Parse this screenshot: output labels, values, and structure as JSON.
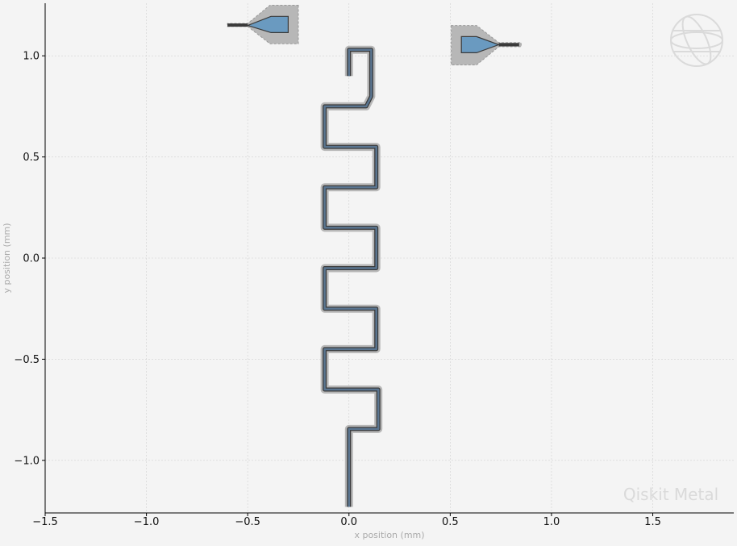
{
  "plot": {
    "xlabel": "x position (mm)",
    "ylabel": "y position (mm)",
    "watermark": "Qiskit Metal",
    "xlim": [
      -1.5,
      1.9
    ],
    "ylim": [
      -1.26,
      1.26
    ],
    "xticks": [
      {
        "value": -1.5,
        "label": "−1.5"
      },
      {
        "value": -1.0,
        "label": "−1.0"
      },
      {
        "value": -0.5,
        "label": "−0.5"
      },
      {
        "value": 0.0,
        "label": "0.0"
      },
      {
        "value": 0.5,
        "label": "0.5"
      },
      {
        "value": 1.0,
        "label": "1.0"
      },
      {
        "value": 1.5,
        "label": "1.5"
      }
    ],
    "yticks": [
      {
        "value": -1.0,
        "label": "−1.0"
      },
      {
        "value": -0.5,
        "label": "−0.5"
      },
      {
        "value": 0.0,
        "label": "0.0"
      },
      {
        "value": 0.5,
        "label": "0.5"
      },
      {
        "value": 1.0,
        "label": "1.0"
      }
    ],
    "grid": true
  },
  "colors": {
    "background": "#f4f4f4",
    "axes": "#000000",
    "grid": "#d0d0d0",
    "gap": "#b7b7b7",
    "trace": "#5a7590",
    "pad_fill": "#6a9ac0",
    "outline": "#3a3a3a",
    "watermark": "#dadada"
  },
  "components": {
    "meander": {
      "name": "meander-resonator",
      "start": [
        0.0,
        -1.23
      ],
      "end": [
        0.0,
        0.9
      ],
      "points": [
        [
          0.0,
          -1.23
        ],
        [
          0.0,
          -0.845
        ],
        [
          0.145,
          -0.845
        ],
        [
          0.145,
          -0.73
        ],
        [
          0.145,
          -0.65
        ],
        [
          0.0,
          -0.65
        ],
        [
          -0.12,
          -0.65
        ],
        [
          -0.12,
          -0.55
        ],
        [
          -0.12,
          -0.45
        ],
        [
          0.0,
          -0.45
        ],
        [
          0.135,
          -0.45
        ],
        [
          0.135,
          -0.35
        ],
        [
          0.135,
          -0.25
        ],
        [
          0.0,
          -0.25
        ],
        [
          -0.12,
          -0.25
        ],
        [
          -0.12,
          -0.15
        ],
        [
          -0.12,
          -0.05
        ],
        [
          0.0,
          -0.05
        ],
        [
          0.135,
          -0.05
        ],
        [
          0.135,
          0.05
        ],
        [
          0.135,
          0.15
        ],
        [
          0.0,
          0.15
        ],
        [
          -0.12,
          0.15
        ],
        [
          -0.12,
          0.25
        ],
        [
          -0.12,
          0.35
        ],
        [
          0.0,
          0.35
        ],
        [
          0.135,
          0.35
        ],
        [
          0.135,
          0.45
        ],
        [
          0.135,
          0.55
        ],
        [
          0.0,
          0.55
        ],
        [
          -0.12,
          0.55
        ],
        [
          -0.12,
          0.65
        ],
        [
          -0.12,
          0.75
        ],
        [
          0.0,
          0.75
        ],
        [
          0.085,
          0.75
        ],
        [
          0.11,
          0.8
        ],
        [
          0.11,
          0.85
        ],
        [
          0.11,
          1.03
        ],
        [
          0.0,
          1.03
        ],
        [
          0.0,
          0.9
        ]
      ]
    },
    "launch_left": {
      "name": "launchpad-left",
      "gap": [
        [
          -0.25,
          1.25
        ],
        [
          -0.25,
          1.06
        ],
        [
          -0.39,
          1.06
        ],
        [
          -0.5,
          1.145
        ],
        [
          -0.6,
          1.145
        ],
        [
          -0.6,
          1.16
        ],
        [
          -0.5,
          1.16
        ],
        [
          -0.39,
          1.25
        ]
      ],
      "pad": [
        [
          -0.3,
          1.195
        ],
        [
          -0.3,
          1.115
        ],
        [
          -0.385,
          1.115
        ],
        [
          -0.5,
          1.15
        ],
        [
          -0.385,
          1.195
        ]
      ],
      "lead": [
        [
          -0.6,
          1.152
        ],
        [
          -0.5,
          1.152
        ]
      ]
    },
    "launch_right": {
      "name": "launchpad-right",
      "gap": [
        [
          0.505,
          1.15
        ],
        [
          0.505,
          0.955
        ],
        [
          0.63,
          0.955
        ],
        [
          0.74,
          1.045
        ],
        [
          0.85,
          1.045
        ],
        [
          0.85,
          1.065
        ],
        [
          0.74,
          1.065
        ],
        [
          0.63,
          1.15
        ]
      ],
      "pad": [
        [
          0.555,
          1.095
        ],
        [
          0.555,
          1.015
        ],
        [
          0.63,
          1.015
        ],
        [
          0.74,
          1.055
        ],
        [
          0.63,
          1.095
        ]
      ],
      "lead": [
        [
          0.74,
          1.055
        ],
        [
          0.84,
          1.055
        ]
      ]
    }
  }
}
